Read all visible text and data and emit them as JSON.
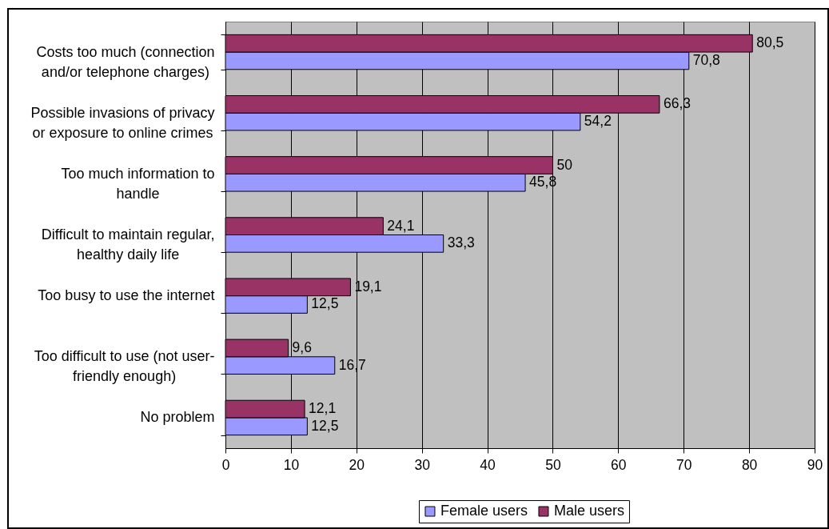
{
  "chart_data": {
    "type": "bar",
    "orientation": "horizontal",
    "categories": [
      "Costs too much (connection and/or telephone charges)",
      "Possible invasions of privacy or exposure to online crimes",
      "Too much information to handle",
      "Difficult to maintain regular, healthy daily life",
      "Too busy to use the internet",
      "Too difficult to use (not user-friendly enough)",
      "No problem"
    ],
    "series": [
      {
        "name": "Female users",
        "color": "#9999ff",
        "values": [
          70.8,
          54.2,
          45.8,
          33.3,
          12.5,
          16.7,
          12.5
        ],
        "value_labels": [
          "70,8",
          "54,2",
          "45,8",
          "33,3",
          "12,5",
          "16,7",
          "12,5"
        ]
      },
      {
        "name": "Male users",
        "color": "#993366",
        "values": [
          80.5,
          66.3,
          50,
          24.1,
          19.1,
          9.6,
          12.1
        ],
        "value_labels": [
          "80,5",
          "66,3",
          "50",
          "24,1",
          "19,1",
          "9,6",
          "12,1"
        ]
      }
    ],
    "xlim": [
      0,
      90
    ],
    "xticks": [
      0,
      10,
      20,
      30,
      40,
      50,
      60,
      70,
      80,
      90
    ],
    "grid": "x",
    "legend": "bottom"
  }
}
